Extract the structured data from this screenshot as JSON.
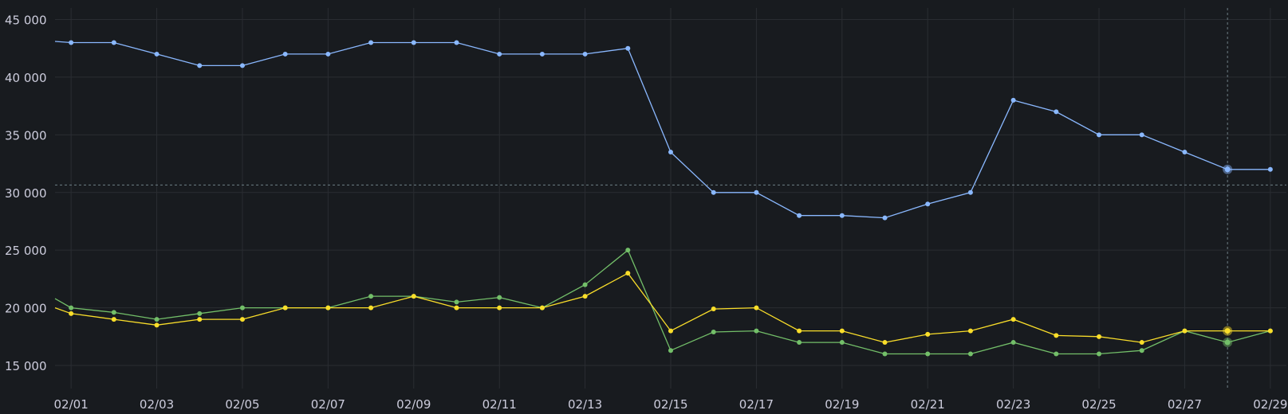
{
  "chart_data": {
    "type": "line",
    "title": "",
    "xlabel": "",
    "ylabel": "",
    "grid": true,
    "ylim": [
      13000,
      46000
    ],
    "xlim": [
      "2024-01-31T15:00",
      "2024-02-29T09:00"
    ],
    "y_ticks": [
      15000,
      20000,
      25000,
      30000,
      35000,
      40000,
      45000
    ],
    "y_tick_labels": [
      "15 000",
      "20 000",
      "25 000",
      "30 000",
      "35 000",
      "40 000",
      "45 000"
    ],
    "x_ticks": [
      "2024-02-01",
      "2024-02-03",
      "2024-02-05",
      "2024-02-07",
      "2024-02-09",
      "2024-02-11",
      "2024-02-13",
      "2024-02-15",
      "2024-02-17",
      "2024-02-19",
      "2024-02-21",
      "2024-02-23",
      "2024-02-25",
      "2024-02-27",
      "2024-02-29"
    ],
    "x_tick_labels": [
      "02/01",
      "02/03",
      "02/05",
      "02/07",
      "02/09",
      "02/11",
      "02/13",
      "02/15",
      "02/17",
      "02/19",
      "02/21",
      "02/23",
      "02/25",
      "02/27",
      "02/29"
    ],
    "x": [
      "2024-02-01",
      "2024-02-02",
      "2024-02-03",
      "2024-02-04",
      "2024-02-05",
      "2024-02-06",
      "2024-02-07",
      "2024-02-08",
      "2024-02-09",
      "2024-02-10",
      "2024-02-11",
      "2024-02-12",
      "2024-02-13",
      "2024-02-14",
      "2024-02-15",
      "2024-02-16",
      "2024-02-17",
      "2024-02-18",
      "2024-02-19",
      "2024-02-20",
      "2024-02-21",
      "2024-02-22",
      "2024-02-23",
      "2024-02-24",
      "2024-02-25",
      "2024-02-26",
      "2024-02-27",
      "2024-02-28",
      "2024-02-29"
    ],
    "series": [
      {
        "color": "#8ab8ff",
        "values": [
          43000,
          43000,
          42000,
          41000,
          41000,
          42000,
          42000,
          43000,
          43000,
          43000,
          42000,
          42000,
          42000,
          42500,
          33500,
          30000,
          30000,
          28000,
          28000,
          27800,
          29000,
          30000,
          38000,
          37000,
          35000,
          35000,
          33500,
          32000,
          32000
        ]
      },
      {
        "color": "#73bf69",
        "values": [
          20000,
          19600,
          19000,
          19500,
          20000,
          20000,
          20000,
          21000,
          21000,
          20500,
          20900,
          20000,
          22000,
          25000,
          16300,
          17900,
          18000,
          17000,
          17000,
          16000,
          16000,
          16000,
          17000,
          16000,
          16000,
          16300,
          18000,
          17000,
          18000
        ]
      },
      {
        "color": "#fade2a",
        "values": [
          19500,
          19000,
          18500,
          19000,
          19000,
          20000,
          20000,
          20000,
          21000,
          20000,
          20000,
          20000,
          21000,
          23000,
          18000,
          19900,
          20000,
          18000,
          18000,
          17000,
          17700,
          18000,
          19000,
          17600,
          17500,
          17000,
          18000,
          18000,
          18000
        ]
      }
    ],
    "crosshair": {
      "x": "2024-02-28",
      "y": 30650
    },
    "highlight_index": 27
  }
}
